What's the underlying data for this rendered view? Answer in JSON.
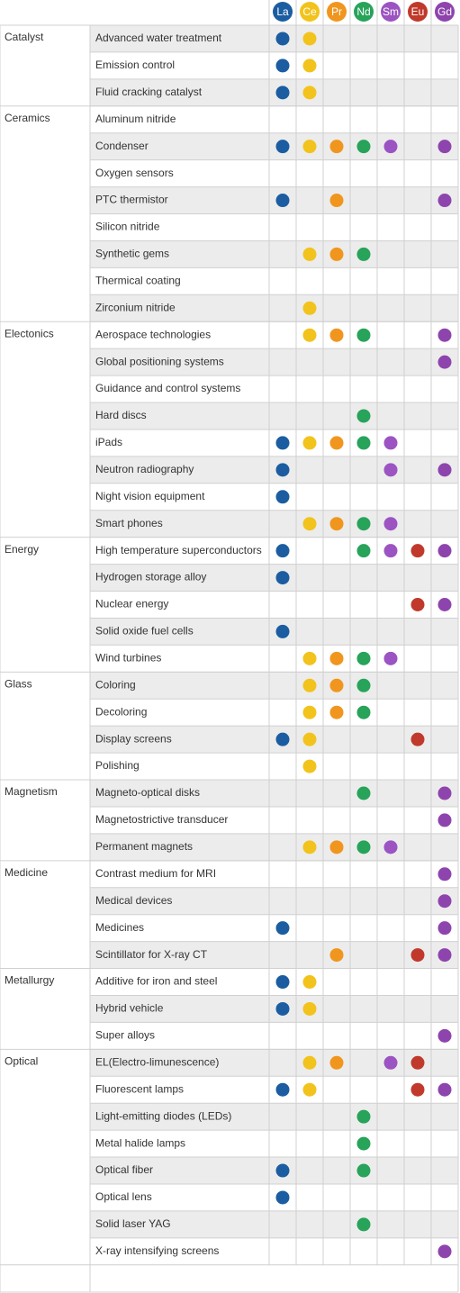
{
  "elements": [
    {
      "symbol": "La",
      "color": "#1b5da0"
    },
    {
      "symbol": "Ce",
      "color": "#f2c31c"
    },
    {
      "symbol": "Pr",
      "color": "#f0961e"
    },
    {
      "symbol": "Nd",
      "color": "#27a35a"
    },
    {
      "symbol": "Sm",
      "color": "#9b54c2"
    },
    {
      "symbol": "Eu",
      "color": "#c0392b"
    },
    {
      "symbol": "Gd",
      "color": "#8e44ad"
    }
  ],
  "groups": [
    {
      "name": "Catalyst",
      "rows": [
        {
          "application": "Advanced water treatment",
          "uses": [
            1,
            1,
            0,
            0,
            0,
            0,
            0
          ]
        },
        {
          "application": "Emission control",
          "uses": [
            1,
            1,
            0,
            0,
            0,
            0,
            0
          ]
        },
        {
          "application": "Fluid cracking catalyst",
          "uses": [
            1,
            1,
            0,
            0,
            0,
            0,
            0
          ]
        }
      ]
    },
    {
      "name": "Ceramics",
      "rows": [
        {
          "application": "Aluminum nitride",
          "uses": [
            0,
            0,
            0,
            0,
            0,
            0,
            0
          ]
        },
        {
          "application": "Condenser",
          "uses": [
            1,
            1,
            1,
            1,
            1,
            0,
            1
          ]
        },
        {
          "application": "Oxygen sensors",
          "uses": [
            0,
            0,
            0,
            0,
            0,
            0,
            0
          ]
        },
        {
          "application": "PTC thermistor",
          "uses": [
            1,
            0,
            1,
            0,
            0,
            0,
            1
          ]
        },
        {
          "application": "Silicon nitride",
          "uses": [
            0,
            0,
            0,
            0,
            0,
            0,
            0
          ]
        },
        {
          "application": "Synthetic gems",
          "uses": [
            0,
            1,
            1,
            1,
            0,
            0,
            0
          ]
        },
        {
          "application": "Thermical coating",
          "uses": [
            0,
            0,
            0,
            0,
            0,
            0,
            0
          ]
        },
        {
          "application": "Zirconium nitride",
          "uses": [
            0,
            1,
            0,
            0,
            0,
            0,
            0
          ]
        }
      ]
    },
    {
      "name": "Electonics",
      "rows": [
        {
          "application": "Aerospace technologies",
          "uses": [
            0,
            1,
            1,
            1,
            0,
            0,
            1
          ]
        },
        {
          "application": "Global positioning systems",
          "uses": [
            0,
            0,
            0,
            0,
            0,
            0,
            1
          ]
        },
        {
          "application": "Guidance and control systems",
          "uses": [
            0,
            0,
            0,
            0,
            0,
            0,
            0
          ]
        },
        {
          "application": "Hard discs",
          "uses": [
            0,
            0,
            0,
            1,
            0,
            0,
            0
          ]
        },
        {
          "application": "iPads",
          "uses": [
            1,
            1,
            1,
            1,
            1,
            0,
            0
          ]
        },
        {
          "application": "Neutron radiography",
          "uses": [
            1,
            0,
            0,
            0,
            1,
            0,
            1
          ]
        },
        {
          "application": "Night vision equipment",
          "uses": [
            1,
            0,
            0,
            0,
            0,
            0,
            0
          ]
        },
        {
          "application": "Smart phones",
          "uses": [
            0,
            1,
            1,
            1,
            1,
            0,
            0
          ]
        }
      ]
    },
    {
      "name": "Energy",
      "rows": [
        {
          "application": "High temperature superconductors",
          "uses": [
            1,
            0,
            0,
            1,
            1,
            1,
            1
          ]
        },
        {
          "application": "Hydrogen storage alloy",
          "uses": [
            1,
            0,
            0,
            0,
            0,
            0,
            0
          ]
        },
        {
          "application": "Nuclear energy",
          "uses": [
            0,
            0,
            0,
            0,
            0,
            1,
            1
          ]
        },
        {
          "application": "Solid oxide fuel cells",
          "uses": [
            1,
            0,
            0,
            0,
            0,
            0,
            0
          ]
        },
        {
          "application": "Wind turbines",
          "uses": [
            0,
            1,
            1,
            1,
            1,
            0,
            0
          ]
        }
      ]
    },
    {
      "name": "Glass",
      "rows": [
        {
          "application": "Coloring",
          "uses": [
            0,
            1,
            1,
            1,
            0,
            0,
            0
          ]
        },
        {
          "application": "Decoloring",
          "uses": [
            0,
            1,
            1,
            1,
            0,
            0,
            0
          ]
        },
        {
          "application": "Display screens",
          "uses": [
            1,
            1,
            0,
            0,
            0,
            1,
            0
          ]
        },
        {
          "application": "Polishing",
          "uses": [
            0,
            1,
            0,
            0,
            0,
            0,
            0
          ]
        }
      ]
    },
    {
      "name": "Magnetism",
      "rows": [
        {
          "application": "Magneto-optical disks",
          "uses": [
            0,
            0,
            0,
            1,
            0,
            0,
            1
          ]
        },
        {
          "application": "Magnetostrictive transducer",
          "uses": [
            0,
            0,
            0,
            0,
            0,
            0,
            1
          ]
        },
        {
          "application": "Permanent magnets",
          "uses": [
            0,
            1,
            1,
            1,
            1,
            0,
            0
          ]
        }
      ]
    },
    {
      "name": "Medicine",
      "rows": [
        {
          "application": "Contrast medium for MRI",
          "uses": [
            0,
            0,
            0,
            0,
            0,
            0,
            1
          ]
        },
        {
          "application": "Medical devices",
          "uses": [
            0,
            0,
            0,
            0,
            0,
            0,
            1
          ]
        },
        {
          "application": "Medicines",
          "uses": [
            1,
            0,
            0,
            0,
            0,
            0,
            1
          ]
        },
        {
          "application": "Scintillator for X-ray CT",
          "uses": [
            0,
            0,
            1,
            0,
            0,
            1,
            1
          ]
        }
      ]
    },
    {
      "name": "Metallurgy",
      "rows": [
        {
          "application": "Additive for iron and steel",
          "uses": [
            1,
            1,
            0,
            0,
            0,
            0,
            0
          ]
        },
        {
          "application": "Hybrid vehicle",
          "uses": [
            1,
            1,
            0,
            0,
            0,
            0,
            0
          ]
        },
        {
          "application": "Super alloys",
          "uses": [
            0,
            0,
            0,
            0,
            0,
            0,
            1
          ]
        }
      ]
    },
    {
      "name": "Optical",
      "rows": [
        {
          "application": "EL(Electro-limunescence)",
          "uses": [
            0,
            1,
            1,
            0,
            1,
            1,
            0
          ]
        },
        {
          "application": "Fluorescent lamps",
          "uses": [
            1,
            1,
            0,
            0,
            0,
            1,
            1
          ]
        },
        {
          "application": "Light-emitting diodes (LEDs)",
          "uses": [
            0,
            0,
            0,
            1,
            0,
            0,
            0
          ]
        },
        {
          "application": "Metal halide lamps",
          "uses": [
            0,
            0,
            0,
            1,
            0,
            0,
            0
          ]
        },
        {
          "application": "Optical fiber",
          "uses": [
            1,
            0,
            0,
            1,
            0,
            0,
            0
          ]
        },
        {
          "application": "Optical lens",
          "uses": [
            1,
            0,
            0,
            0,
            0,
            0,
            0
          ]
        },
        {
          "application": "Solid laser YAG",
          "uses": [
            0,
            0,
            0,
            1,
            0,
            0,
            0
          ]
        },
        {
          "application": "X-ray intensifying screens",
          "uses": [
            0,
            0,
            0,
            0,
            0,
            0,
            1
          ]
        }
      ]
    }
  ]
}
